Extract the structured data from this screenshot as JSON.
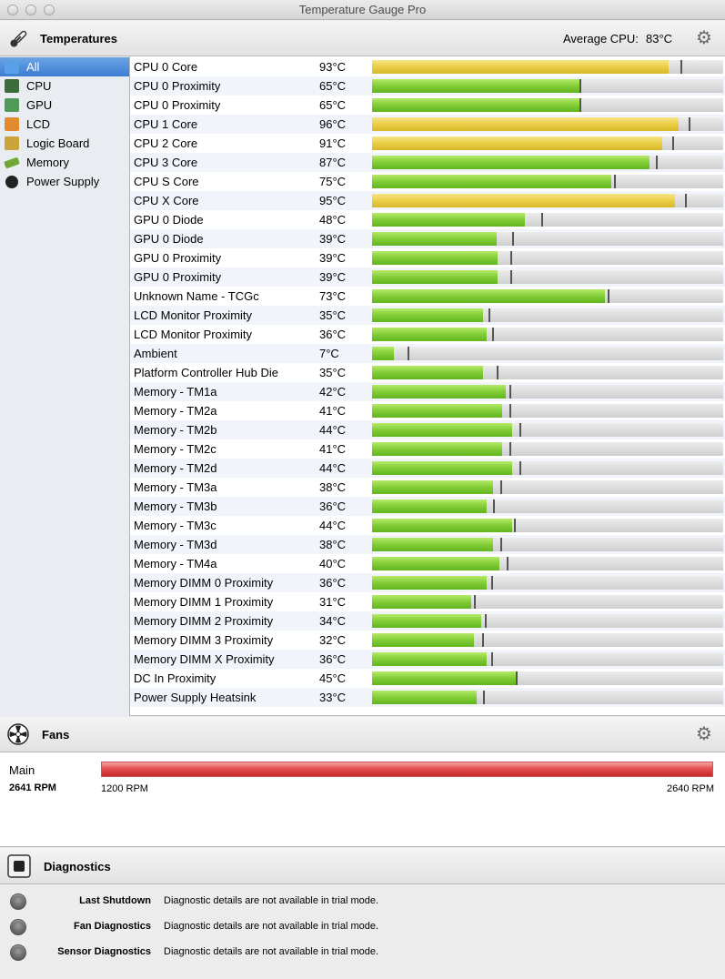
{
  "window": {
    "title": "Temperature Gauge Pro"
  },
  "temperatures": {
    "title": "Temperatures",
    "average_cpu_label": "Average CPU:",
    "average_cpu_value": "83°C",
    "settings_icon": "gear-icon"
  },
  "sidebar": {
    "items": [
      {
        "label": "All",
        "icon": "monitor-icon",
        "color": "#5aa0e8",
        "selected": true
      },
      {
        "label": "CPU",
        "icon": "cpu-chip-icon",
        "color": "#3d6b3a",
        "selected": false
      },
      {
        "label": "GPU",
        "icon": "gpu-chip-icon",
        "color": "#4f9a58",
        "selected": false
      },
      {
        "label": "LCD",
        "icon": "lcd-icon",
        "color": "#e28a2e",
        "selected": false
      },
      {
        "label": "Logic Board",
        "icon": "logic-board-icon",
        "color": "#c8a43a",
        "selected": false
      },
      {
        "label": "Memory",
        "icon": "memory-icon",
        "color": "#6fa836",
        "selected": false
      },
      {
        "label": "Power Supply",
        "icon": "power-icon",
        "color": "#222222",
        "selected": false
      }
    ]
  },
  "sensors": [
    {
      "name": "CPU 0 Core",
      "value": "93°C",
      "fill": 0.845,
      "max": 0.877,
      "hot": true
    },
    {
      "name": "CPU 0 Proximity",
      "value": "65°C",
      "fill": 0.59,
      "max": 0.59,
      "hot": false
    },
    {
      "name": "CPU 0 Proximity",
      "value": "65°C",
      "fill": 0.59,
      "max": 0.59,
      "hot": false
    },
    {
      "name": "CPU 1 Core",
      "value": "96°C",
      "fill": 0.873,
      "max": 0.902,
      "hot": true
    },
    {
      "name": "CPU 2 Core",
      "value": "91°C",
      "fill": 0.827,
      "max": 0.855,
      "hot": true
    },
    {
      "name": "CPU 3 Core",
      "value": "87°C",
      "fill": 0.79,
      "max": 0.808,
      "hot": false
    },
    {
      "name": "CPU S Core",
      "value": "75°C",
      "fill": 0.681,
      "max": 0.689,
      "hot": false
    },
    {
      "name": "CPU X Core",
      "value": "95°C",
      "fill": 0.863,
      "max": 0.891,
      "hot": true
    },
    {
      "name": "GPU 0 Diode",
      "value": "48°C",
      "fill": 0.436,
      "max": 0.482,
      "hot": false
    },
    {
      "name": "GPU 0 Diode",
      "value": "39°C",
      "fill": 0.354,
      "max": 0.399,
      "hot": false
    },
    {
      "name": "GPU 0 Proximity",
      "value": "39°C",
      "fill": 0.357,
      "max": 0.393,
      "hot": false
    },
    {
      "name": "GPU 0 Proximity",
      "value": "39°C",
      "fill": 0.357,
      "max": 0.393,
      "hot": false
    },
    {
      "name": "Unknown Name - TCGc",
      "value": "73°C",
      "fill": 0.663,
      "max": 0.671,
      "hot": false
    },
    {
      "name": "LCD Monitor Proximity",
      "value": "35°C",
      "fill": 0.316,
      "max": 0.332,
      "hot": false
    },
    {
      "name": "LCD Monitor Proximity",
      "value": "36°C",
      "fill": 0.327,
      "max": 0.342,
      "hot": false
    },
    {
      "name": "Ambient",
      "value": "7°C",
      "fill": 0.062,
      "max": 0.101,
      "hot": false
    },
    {
      "name": "Platform Controller Hub Die",
      "value": "35°C",
      "fill": 0.316,
      "max": 0.354,
      "hot": false
    },
    {
      "name": "Memory - TM1a",
      "value": "42°C",
      "fill": 0.381,
      "max": 0.391,
      "hot": false
    },
    {
      "name": "Memory - TM2a",
      "value": "41°C",
      "fill": 0.371,
      "max": 0.391,
      "hot": false
    },
    {
      "name": "Memory - TM2b",
      "value": "44°C",
      "fill": 0.399,
      "max": 0.42,
      "hot": false
    },
    {
      "name": "Memory - TM2c",
      "value": "41°C",
      "fill": 0.371,
      "max": 0.391,
      "hot": false
    },
    {
      "name": "Memory - TM2d",
      "value": "44°C",
      "fill": 0.399,
      "max": 0.42,
      "hot": false
    },
    {
      "name": "Memory - TM3a",
      "value": "38°C",
      "fill": 0.344,
      "max": 0.365,
      "hot": false
    },
    {
      "name": "Memory - TM3b",
      "value": "36°C",
      "fill": 0.327,
      "max": 0.344,
      "hot": false
    },
    {
      "name": "Memory - TM3c",
      "value": "44°C",
      "fill": 0.399,
      "max": 0.404,
      "hot": false
    },
    {
      "name": "Memory - TM3d",
      "value": "38°C",
      "fill": 0.344,
      "max": 0.365,
      "hot": false
    },
    {
      "name": "Memory - TM4a",
      "value": "40°C",
      "fill": 0.362,
      "max": 0.383,
      "hot": false
    },
    {
      "name": "Memory DIMM 0 Proximity",
      "value": "36°C",
      "fill": 0.327,
      "max": 0.339,
      "hot": false
    },
    {
      "name": "Memory DIMM 1 Proximity",
      "value": "31°C",
      "fill": 0.282,
      "max": 0.29,
      "hot": false
    },
    {
      "name": "Memory DIMM 2 Proximity",
      "value": "34°C",
      "fill": 0.311,
      "max": 0.321,
      "hot": false
    },
    {
      "name": "Memory DIMM 3 Proximity",
      "value": "32°C",
      "fill": 0.29,
      "max": 0.313,
      "hot": false
    },
    {
      "name": "Memory DIMM X Proximity",
      "value": "36°C",
      "fill": 0.327,
      "max": 0.339,
      "hot": false
    },
    {
      "name": "DC In Proximity",
      "value": "45°C",
      "fill": 0.409,
      "max": 0.409,
      "hot": false
    },
    {
      "name": "Power Supply Heatsink",
      "value": "33°C",
      "fill": 0.298,
      "max": 0.316,
      "hot": false
    }
  ],
  "fans": {
    "title": "Fans",
    "settings_icon": "gear-icon",
    "items": [
      {
        "name": "Main",
        "rpm": "2641 RPM",
        "min": "1200 RPM",
        "max": "2640 RPM",
        "fill": 1.0
      }
    ]
  },
  "diagnostics": {
    "title": "Diagnostics",
    "rows": [
      {
        "label": "Last Shutdown",
        "text": "Diagnostic details are not available in trial mode."
      },
      {
        "label": "Fan Diagnostics",
        "text": "Diagnostic details are not available in trial mode."
      },
      {
        "label": "Sensor Diagnostics",
        "text": "Diagnostic details are not available in trial mode."
      }
    ]
  },
  "colors": {
    "bar_normal": "#7cc832",
    "bar_hot": "#e8c840",
    "fan_bar": "#e04848",
    "selection": "#3b7dd1"
  }
}
